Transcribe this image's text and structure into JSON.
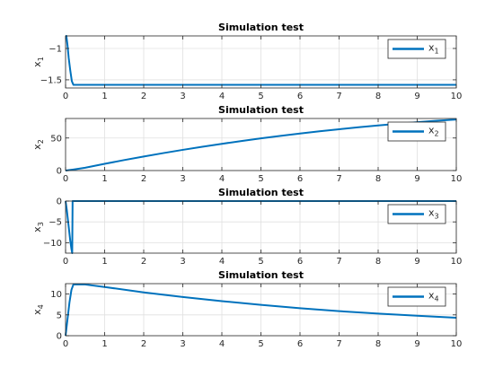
{
  "chart_data": [
    {
      "type": "line",
      "title": "Simulation test",
      "xlabel": "",
      "ylabel": "x_1",
      "xlim": [
        0,
        10
      ],
      "ylim": [
        -1.63,
        -0.8
      ],
      "xticks": [
        0,
        1,
        2,
        3,
        4,
        5,
        6,
        7,
        8,
        9,
        10
      ],
      "yticks": [
        -1.5,
        -1
      ],
      "grid": true,
      "legend_position": "top-right",
      "series": [
        {
          "name": "x_1",
          "color": "#0072BD",
          "x": [
            0,
            0.02,
            0.05,
            0.08,
            0.12,
            0.16,
            0.2,
            1,
            2,
            3,
            4,
            5,
            6,
            7,
            8,
            9,
            10
          ],
          "y": [
            -0.8,
            -0.8,
            -0.95,
            -1.15,
            -1.35,
            -1.52,
            -1.58,
            -1.58,
            -1.58,
            -1.58,
            -1.58,
            -1.58,
            -1.58,
            -1.58,
            -1.58,
            -1.58,
            -1.58
          ]
        }
      ]
    },
    {
      "type": "line",
      "title": "Simulation test",
      "xlabel": "",
      "ylabel": "x_2",
      "xlim": [
        0,
        10
      ],
      "ylim": [
        0,
        80
      ],
      "xticks": [
        0,
        1,
        2,
        3,
        4,
        5,
        6,
        7,
        8,
        9,
        10
      ],
      "yticks": [
        0,
        50
      ],
      "grid": true,
      "legend_position": "top-right",
      "series": [
        {
          "name": "x_2",
          "color": "#0072BD",
          "x": [
            0,
            0.2,
            0.5,
            1,
            1.5,
            2,
            2.5,
            3,
            3.5,
            4,
            4.5,
            5,
            5.5,
            6,
            6.5,
            7,
            7.5,
            8,
            8.5,
            9,
            9.5,
            10
          ],
          "y": [
            0,
            1.6,
            4.3,
            10.3,
            16.1,
            21.6,
            26.8,
            31.8,
            36.6,
            41.1,
            45.4,
            49.5,
            53.3,
            56.9,
            60.3,
            63.5,
            66.5,
            69.3,
            71.9,
            74.3,
            76.5,
            78.5
          ]
        }
      ]
    },
    {
      "type": "line",
      "title": "Simulation test",
      "xlabel": "",
      "ylabel": "x_3",
      "xlim": [
        0,
        10
      ],
      "ylim": [
        -12.5,
        0
      ],
      "xticks": [
        0,
        1,
        2,
        3,
        4,
        5,
        6,
        7,
        8,
        9,
        10
      ],
      "yticks": [
        -10,
        -5,
        0
      ],
      "grid": true,
      "legend_position": "top-right",
      "series": [
        {
          "name": "x_3",
          "color": "#0072BD",
          "x": [
            0,
            0.03,
            0.06,
            0.09,
            0.12,
            0.15,
            0.17,
            0.18,
            0.2,
            1,
            2,
            3,
            4,
            5,
            6,
            7,
            8,
            9,
            10
          ],
          "y": [
            0,
            -2,
            -4.5,
            -7,
            -9.5,
            -11.5,
            -12.5,
            0,
            0,
            0,
            0,
            0,
            0,
            0,
            0,
            0,
            0,
            0,
            0
          ]
        }
      ]
    },
    {
      "type": "line",
      "title": "Simulation test",
      "xlabel": "",
      "ylabel": "x_4",
      "xlim": [
        0,
        10
      ],
      "ylim": [
        0,
        12.5
      ],
      "xticks": [
        0,
        1,
        2,
        3,
        4,
        5,
        6,
        7,
        8,
        9,
        10
      ],
      "yticks": [
        0,
        5,
        10
      ],
      "grid": true,
      "legend_position": "top-right",
      "series": [
        {
          "name": "x_4",
          "color": "#0072BD",
          "x": [
            0,
            0.05,
            0.1,
            0.15,
            0.2,
            0.5,
            1,
            2,
            3,
            4,
            5,
            6,
            7,
            8,
            9,
            10
          ],
          "y": [
            0,
            4,
            8,
            11,
            12.3,
            12.3,
            11.7,
            10.4,
            9.3,
            8.3,
            7.4,
            6.6,
            5.9,
            5.3,
            4.8,
            4.3
          ]
        }
      ]
    }
  ]
}
